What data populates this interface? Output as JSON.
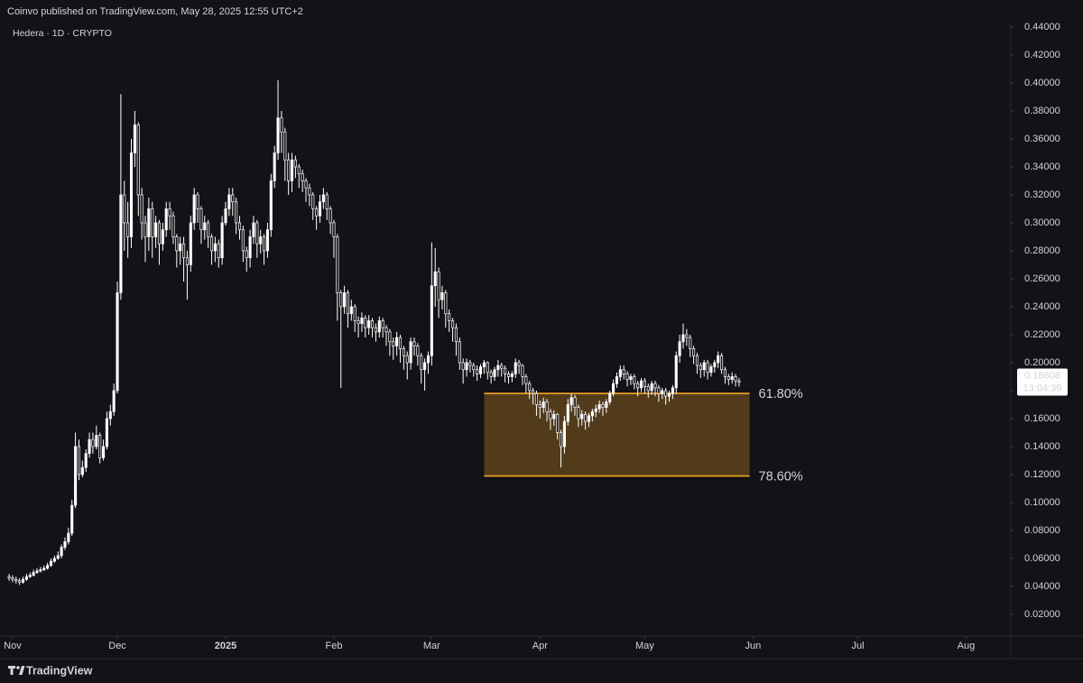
{
  "chart_data": {
    "type": "candlestick",
    "publisher_note": "Coinvo published on TradingView.com, May 28, 2025 12:55 UTC+2",
    "title": "Hedera · 1D · CRYPTO",
    "brand": "TradingView",
    "countdown": "13:04:39",
    "up_color": "#ffffff",
    "down_color": "#131217",
    "grid": false,
    "ylim": [
      0.0045,
      0.4432
    ],
    "yticks": [
      {
        "value": 0.02,
        "label": "0.02000"
      },
      {
        "value": 0.04,
        "label": "0.04000"
      },
      {
        "value": 0.06,
        "label": "0.06000"
      },
      {
        "value": 0.08,
        "label": "0.08000"
      },
      {
        "value": 0.1,
        "label": "0.10000"
      },
      {
        "value": 0.12,
        "label": "0.12000"
      },
      {
        "value": 0.14,
        "label": "0.14000"
      },
      {
        "value": 0.16,
        "label": "0.16000"
      },
      {
        "value": 0.18,
        "label": "0.18000"
      },
      {
        "value": 0.2,
        "label": "0.20000"
      },
      {
        "value": 0.22,
        "label": "0.22000"
      },
      {
        "value": 0.24,
        "label": "0.24000"
      },
      {
        "value": 0.26,
        "label": "0.26000"
      },
      {
        "value": 0.28,
        "label": "0.28000"
      },
      {
        "value": 0.3,
        "label": "0.30000"
      },
      {
        "value": 0.32,
        "label": "0.32000"
      },
      {
        "value": 0.34,
        "label": "0.34000"
      },
      {
        "value": 0.36,
        "label": "0.36000"
      },
      {
        "value": 0.38,
        "label": "0.38000"
      },
      {
        "value": 0.4,
        "label": "0.40000"
      },
      {
        "value": 0.42,
        "label": "0.42000"
      },
      {
        "value": 0.44,
        "label": "0.44000"
      }
    ],
    "xlim": [
      -2.6,
      286.8
    ],
    "xticks": [
      {
        "value": 1,
        "label": "Nov"
      },
      {
        "value": 31,
        "label": "Dec"
      },
      {
        "value": 62,
        "label": "2025"
      },
      {
        "value": 93,
        "label": "Feb"
      },
      {
        "value": 121,
        "label": "Mar"
      },
      {
        "value": 152,
        "label": "Apr"
      },
      {
        "value": 182,
        "label": "May"
      },
      {
        "value": 213,
        "label": "Jun"
      },
      {
        "value": 243,
        "label": "Jul"
      },
      {
        "value": 274,
        "label": "Aug"
      }
    ],
    "fib": {
      "color": "#f5a623",
      "x_range": [
        136,
        212
      ],
      "levels": [
        {
          "value": 0.178,
          "label": "61.80%"
        },
        {
          "value": 0.119,
          "label": "78.60%"
        }
      ]
    },
    "open": [
      0.047,
      0.046,
      0.045,
      0.044,
      0.043,
      0.045,
      0.047,
      0.048,
      0.05,
      0.051,
      0.052,
      0.053,
      0.055,
      0.058,
      0.06,
      0.062,
      0.068,
      0.072,
      0.078,
      0.098,
      0.14,
      0.12,
      0.125,
      0.135,
      0.145,
      0.14,
      0.148,
      0.132,
      0.14,
      0.16,
      0.165,
      0.18,
      0.25,
      0.32,
      0.3,
      0.29,
      0.35,
      0.37,
      0.32,
      0.3,
      0.29,
      0.31,
      0.29,
      0.3,
      0.285,
      0.295,
      0.31,
      0.305,
      0.29,
      0.28,
      0.285,
      0.275,
      0.27,
      0.3,
      0.32,
      0.31,
      0.295,
      0.3,
      0.29,
      0.28,
      0.285,
      0.275,
      0.3,
      0.31,
      0.32,
      0.315,
      0.3,
      0.295,
      0.28,
      0.275,
      0.29,
      0.3,
      0.285,
      0.29,
      0.28,
      0.295,
      0.33,
      0.35,
      0.375,
      0.365,
      0.345,
      0.33,
      0.345,
      0.34,
      0.335,
      0.33,
      0.325,
      0.32,
      0.31,
      0.305,
      0.315,
      0.32,
      0.31,
      0.3,
      0.29,
      0.25,
      0.24,
      0.25,
      0.235,
      0.24,
      0.23,
      0.228,
      0.232,
      0.225,
      0.23,
      0.225,
      0.222,
      0.23,
      0.225,
      0.222,
      0.215,
      0.212,
      0.218,
      0.21,
      0.205,
      0.2,
      0.215,
      0.212,
      0.205,
      0.195,
      0.2,
      0.205,
      0.255,
      0.265,
      0.245,
      0.25,
      0.235,
      0.23,
      0.225,
      0.215,
      0.2,
      0.195,
      0.2,
      0.198,
      0.195,
      0.192,
      0.197,
      0.2,
      0.193,
      0.19,
      0.195,
      0.198,
      0.196,
      0.192,
      0.19,
      0.192,
      0.2,
      0.198,
      0.19,
      0.185,
      0.18,
      0.178,
      0.17,
      0.168,
      0.172,
      0.165,
      0.16,
      0.163,
      0.15,
      0.14,
      0.158,
      0.17,
      0.175,
      0.168,
      0.16,
      0.163,
      0.158,
      0.162,
      0.165,
      0.167,
      0.17,
      0.168,
      0.172,
      0.178,
      0.185,
      0.19,
      0.195,
      0.192,
      0.188,
      0.19,
      0.185,
      0.182,
      0.187,
      0.183,
      0.18,
      0.185,
      0.182,
      0.178,
      0.18,
      0.176,
      0.178,
      0.182,
      0.205,
      0.215,
      0.22,
      0.218,
      0.21,
      0.205,
      0.198,
      0.195,
      0.2,
      0.193,
      0.197,
      0.2,
      0.205,
      0.195,
      0.19,
      0.188,
      0.19,
      0.187
    ],
    "high": [
      0.049,
      0.048,
      0.047,
      0.046,
      0.047,
      0.049,
      0.05,
      0.052,
      0.053,
      0.054,
      0.055,
      0.057,
      0.06,
      0.062,
      0.065,
      0.07,
      0.075,
      0.082,
      0.102,
      0.15,
      0.145,
      0.13,
      0.138,
      0.15,
      0.15,
      0.155,
      0.15,
      0.145,
      0.165,
      0.17,
      0.185,
      0.258,
      0.392,
      0.33,
      0.315,
      0.36,
      0.38,
      0.372,
      0.325,
      0.305,
      0.318,
      0.315,
      0.305,
      0.302,
      0.3,
      0.315,
      0.315,
      0.308,
      0.292,
      0.29,
      0.29,
      0.28,
      0.305,
      0.325,
      0.322,
      0.312,
      0.305,
      0.302,
      0.292,
      0.29,
      0.288,
      0.305,
      0.315,
      0.325,
      0.325,
      0.318,
      0.305,
      0.298,
      0.283,
      0.295,
      0.305,
      0.302,
      0.295,
      0.292,
      0.3,
      0.335,
      0.355,
      0.402,
      0.38,
      0.368,
      0.35,
      0.35,
      0.348,
      0.342,
      0.338,
      0.332,
      0.328,
      0.322,
      0.312,
      0.32,
      0.325,
      0.322,
      0.312,
      0.302,
      0.292,
      0.252,
      0.255,
      0.252,
      0.245,
      0.242,
      0.233,
      0.236,
      0.234,
      0.234,
      0.232,
      0.228,
      0.233,
      0.232,
      0.227,
      0.224,
      0.218,
      0.222,
      0.22,
      0.212,
      0.208,
      0.218,
      0.218,
      0.214,
      0.207,
      0.203,
      0.208,
      0.286,
      0.282,
      0.268,
      0.255,
      0.252,
      0.238,
      0.232,
      0.228,
      0.218,
      0.203,
      0.203,
      0.202,
      0.2,
      0.198,
      0.199,
      0.202,
      0.201,
      0.195,
      0.197,
      0.202,
      0.2,
      0.198,
      0.194,
      0.194,
      0.203,
      0.202,
      0.199,
      0.192,
      0.187,
      0.182,
      0.18,
      0.173,
      0.175,
      0.174,
      0.167,
      0.166,
      0.164,
      0.152,
      0.162,
      0.174,
      0.178,
      0.177,
      0.17,
      0.166,
      0.165,
      0.164,
      0.167,
      0.17,
      0.173,
      0.172,
      0.174,
      0.18,
      0.188,
      0.193,
      0.198,
      0.198,
      0.194,
      0.192,
      0.192,
      0.187,
      0.189,
      0.189,
      0.185,
      0.187,
      0.187,
      0.184,
      0.182,
      0.182,
      0.18,
      0.184,
      0.208,
      0.22,
      0.228,
      0.224,
      0.22,
      0.212,
      0.207,
      0.2,
      0.202,
      0.202,
      0.199,
      0.202,
      0.208,
      0.207,
      0.197,
      0.192,
      0.193,
      0.192,
      0.189
    ],
    "low": [
      0.044,
      0.043,
      0.042,
      0.041,
      0.042,
      0.044,
      0.046,
      0.047,
      0.049,
      0.05,
      0.051,
      0.052,
      0.054,
      0.057,
      0.059,
      0.06,
      0.066,
      0.07,
      0.076,
      0.096,
      0.116,
      0.118,
      0.122,
      0.132,
      0.135,
      0.138,
      0.128,
      0.13,
      0.138,
      0.155,
      0.162,
      0.178,
      0.245,
      0.28,
      0.275,
      0.282,
      0.34,
      0.305,
      0.288,
      0.272,
      0.28,
      0.275,
      0.282,
      0.27,
      0.28,
      0.29,
      0.295,
      0.285,
      0.268,
      0.27,
      0.258,
      0.245,
      0.265,
      0.295,
      0.3,
      0.285,
      0.288,
      0.282,
      0.27,
      0.272,
      0.268,
      0.27,
      0.298,
      0.305,
      0.305,
      0.292,
      0.288,
      0.272,
      0.265,
      0.268,
      0.285,
      0.275,
      0.278,
      0.27,
      0.275,
      0.29,
      0.325,
      0.345,
      0.35,
      0.33,
      0.32,
      0.322,
      0.332,
      0.325,
      0.322,
      0.315,
      0.312,
      0.302,
      0.295,
      0.3,
      0.31,
      0.302,
      0.292,
      0.275,
      0.23,
      0.182,
      0.235,
      0.225,
      0.23,
      0.222,
      0.218,
      0.222,
      0.218,
      0.22,
      0.218,
      0.215,
      0.218,
      0.218,
      0.212,
      0.205,
      0.202,
      0.205,
      0.2,
      0.195,
      0.188,
      0.195,
      0.205,
      0.198,
      0.185,
      0.18,
      0.192,
      0.198,
      0.24,
      0.232,
      0.238,
      0.225,
      0.222,
      0.215,
      0.205,
      0.195,
      0.185,
      0.19,
      0.193,
      0.19,
      0.187,
      0.189,
      0.192,
      0.188,
      0.185,
      0.187,
      0.19,
      0.19,
      0.186,
      0.185,
      0.186,
      0.189,
      0.192,
      0.184,
      0.178,
      0.174,
      0.17,
      0.162,
      0.16,
      0.164,
      0.158,
      0.152,
      0.155,
      0.145,
      0.125,
      0.135,
      0.155,
      0.165,
      0.162,
      0.154,
      0.155,
      0.152,
      0.154,
      0.158,
      0.161,
      0.164,
      0.162,
      0.164,
      0.17,
      0.176,
      0.182,
      0.187,
      0.188,
      0.183,
      0.184,
      0.181,
      0.176,
      0.179,
      0.178,
      0.175,
      0.177,
      0.176,
      0.172,
      0.174,
      0.17,
      0.172,
      0.174,
      0.178,
      0.2,
      0.21,
      0.212,
      0.204,
      0.199,
      0.192,
      0.189,
      0.19,
      0.188,
      0.19,
      0.193,
      0.196,
      0.192,
      0.185,
      0.184,
      0.185,
      0.183,
      0.183
    ],
    "close": [
      0.046,
      0.045,
      0.044,
      0.043,
      0.045,
      0.047,
      0.048,
      0.05,
      0.051,
      0.052,
      0.053,
      0.055,
      0.058,
      0.06,
      0.062,
      0.068,
      0.072,
      0.078,
      0.098,
      0.14,
      0.12,
      0.125,
      0.135,
      0.145,
      0.14,
      0.148,
      0.132,
      0.14,
      0.16,
      0.165,
      0.18,
      0.25,
      0.32,
      0.3,
      0.29,
      0.35,
      0.37,
      0.32,
      0.3,
      0.29,
      0.31,
      0.29,
      0.3,
      0.285,
      0.295,
      0.31,
      0.305,
      0.29,
      0.28,
      0.285,
      0.275,
      0.27,
      0.3,
      0.32,
      0.31,
      0.295,
      0.3,
      0.29,
      0.28,
      0.285,
      0.275,
      0.3,
      0.31,
      0.32,
      0.315,
      0.3,
      0.295,
      0.28,
      0.275,
      0.29,
      0.3,
      0.285,
      0.29,
      0.28,
      0.295,
      0.33,
      0.35,
      0.375,
      0.365,
      0.345,
      0.33,
      0.345,
      0.34,
      0.335,
      0.33,
      0.325,
      0.32,
      0.31,
      0.305,
      0.315,
      0.32,
      0.31,
      0.3,
      0.29,
      0.25,
      0.24,
      0.25,
      0.235,
      0.24,
      0.23,
      0.228,
      0.232,
      0.225,
      0.23,
      0.225,
      0.222,
      0.23,
      0.225,
      0.222,
      0.215,
      0.212,
      0.218,
      0.21,
      0.205,
      0.2,
      0.215,
      0.212,
      0.205,
      0.195,
      0.2,
      0.205,
      0.255,
      0.265,
      0.245,
      0.25,
      0.235,
      0.23,
      0.225,
      0.215,
      0.2,
      0.195,
      0.2,
      0.198,
      0.195,
      0.192,
      0.197,
      0.2,
      0.193,
      0.19,
      0.195,
      0.198,
      0.196,
      0.192,
      0.19,
      0.192,
      0.2,
      0.198,
      0.19,
      0.185,
      0.18,
      0.178,
      0.17,
      0.168,
      0.172,
      0.165,
      0.16,
      0.163,
      0.15,
      0.14,
      0.158,
      0.17,
      0.175,
      0.168,
      0.16,
      0.163,
      0.158,
      0.162,
      0.165,
      0.167,
      0.17,
      0.168,
      0.172,
      0.178,
      0.185,
      0.19,
      0.195,
      0.192,
      0.188,
      0.19,
      0.185,
      0.182,
      0.187,
      0.183,
      0.18,
      0.185,
      0.182,
      0.178,
      0.18,
      0.176,
      0.178,
      0.182,
      0.205,
      0.215,
      0.22,
      0.218,
      0.21,
      0.205,
      0.198,
      0.195,
      0.2,
      0.193,
      0.197,
      0.2,
      0.205,
      0.195,
      0.19,
      0.188,
      0.19,
      0.187,
      0.18608
    ]
  }
}
